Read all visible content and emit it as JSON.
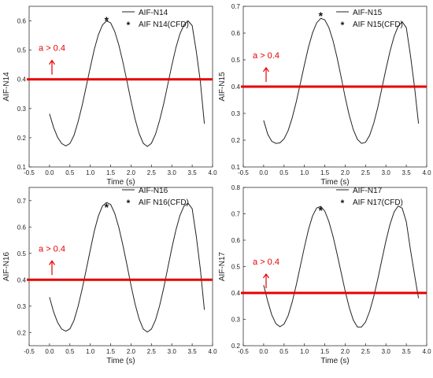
{
  "chart_data": [
    {
      "type": "line",
      "xlabel": "Time (s)",
      "ylabel": "AIF-N14",
      "xlim": [
        -0.5,
        4.0
      ],
      "ylim": [
        0.1,
        0.65
      ],
      "xticks": [
        "-0.5",
        "0.0",
        "0.5",
        "1.0",
        "1.5",
        "2.0",
        "2.5",
        "3.0",
        "3.5",
        "4.0"
      ],
      "yticks": [
        "0.1",
        "0.2",
        "0.3",
        "0.4",
        "0.5",
        "0.6"
      ],
      "grid": false,
      "legend_position": "top-right",
      "series": [
        {
          "name": "AIF-N14",
          "kind": "line",
          "x": [
            0.0,
            0.1,
            0.2,
            0.3,
            0.4,
            0.5,
            0.6,
            0.7,
            0.8,
            0.9,
            1.0,
            1.1,
            1.2,
            1.3,
            1.4,
            1.5,
            1.6,
            1.7,
            1.8,
            1.9,
            2.0,
            2.1,
            2.2,
            2.3,
            2.4,
            2.5,
            2.6,
            2.7,
            2.8,
            2.9,
            3.0,
            3.1,
            3.2,
            3.3,
            3.4,
            3.5,
            3.6,
            3.7,
            3.8
          ],
          "y": [
            0.282,
            0.235,
            0.201,
            0.18,
            0.172,
            0.18,
            0.208,
            0.254,
            0.31,
            0.375,
            0.441,
            0.503,
            0.553,
            0.586,
            0.6,
            0.593,
            0.564,
            0.518,
            0.459,
            0.393,
            0.326,
            0.264,
            0.214,
            0.181,
            0.17,
            0.181,
            0.212,
            0.259,
            0.316,
            0.381,
            0.447,
            0.508,
            0.556,
            0.587,
            0.6,
            0.584,
            0.496,
            0.392,
            0.248
          ]
        },
        {
          "name": "AIF N14(CFD)",
          "kind": "marker",
          "x": [
            1.4
          ],
          "y": [
            0.602
          ]
        }
      ],
      "threshold": {
        "y": 0.4,
        "color": "#e60000"
      },
      "annotation": {
        "text": "a > 0.4",
        "color": "#e60000"
      }
    },
    {
      "type": "line",
      "xlabel": "Time (s)",
      "ylabel": "AIF-N15",
      "xlim": [
        -0.5,
        4.0
      ],
      "ylim": [
        0.1,
        0.7
      ],
      "xticks": [
        "-0.5",
        "0.0",
        "0.5",
        "1.0",
        "1.5",
        "2.0",
        "2.5",
        "3.0",
        "3.5",
        "4.0"
      ],
      "yticks": [
        "0.1",
        "0.2",
        "0.3",
        "0.4",
        "0.5",
        "0.6",
        "0.7"
      ],
      "grid": false,
      "legend_position": "top-right",
      "series": [
        {
          "name": "AIF-N15",
          "kind": "line",
          "x": [
            0.0,
            0.1,
            0.2,
            0.3,
            0.4,
            0.5,
            0.6,
            0.7,
            0.8,
            0.9,
            1.0,
            1.1,
            1.2,
            1.3,
            1.4,
            1.5,
            1.6,
            1.7,
            1.8,
            1.9,
            2.0,
            2.1,
            2.2,
            2.3,
            2.4,
            2.5,
            2.6,
            2.7,
            2.8,
            2.9,
            3.0,
            3.1,
            3.2,
            3.3,
            3.4,
            3.5,
            3.6,
            3.7,
            3.8
          ],
          "y": [
            0.274,
            0.222,
            0.196,
            0.188,
            0.19,
            0.205,
            0.236,
            0.283,
            0.343,
            0.412,
            0.482,
            0.547,
            0.601,
            0.638,
            0.655,
            0.649,
            0.621,
            0.573,
            0.509,
            0.436,
            0.361,
            0.293,
            0.239,
            0.203,
            0.188,
            0.192,
            0.218,
            0.263,
            0.323,
            0.393,
            0.465,
            0.532,
            0.588,
            0.626,
            0.642,
            0.62,
            0.518,
            0.4,
            0.262
          ]
        },
        {
          "name": "AIF N15(CFD)",
          "kind": "marker",
          "x": [
            1.4
          ],
          "y": [
            0.665
          ]
        }
      ],
      "threshold": {
        "y": 0.4,
        "color": "#e60000"
      },
      "annotation": {
        "text": "a > 0.4",
        "color": "#e60000"
      }
    },
    {
      "type": "line",
      "xlabel": "Time (s)",
      "ylabel": "AIF-N16",
      "xlim": [
        -0.5,
        4.0
      ],
      "ylim": [
        0.15,
        0.75
      ],
      "xticks": [
        "-0.5",
        "0.0",
        "0.5",
        "1.0",
        "1.5",
        "2.0",
        "2.5",
        "3.0",
        "3.5",
        "4.0"
      ],
      "yticks": [
        "0.2",
        "0.3",
        "0.4",
        "0.5",
        "0.6",
        "0.7"
      ],
      "grid": false,
      "legend_position": "top-right",
      "series": [
        {
          "name": "AIF-N16",
          "kind": "line",
          "x": [
            0.0,
            0.1,
            0.2,
            0.3,
            0.4,
            0.5,
            0.6,
            0.7,
            0.8,
            0.9,
            1.0,
            1.1,
            1.2,
            1.3,
            1.4,
            1.5,
            1.6,
            1.7,
            1.8,
            1.9,
            2.0,
            2.1,
            2.2,
            2.3,
            2.4,
            2.5,
            2.6,
            2.7,
            2.8,
            2.9,
            3.0,
            3.1,
            3.2,
            3.3,
            3.4,
            3.5,
            3.6,
            3.7,
            3.8
          ],
          "y": [
            0.334,
            0.278,
            0.238,
            0.213,
            0.205,
            0.214,
            0.246,
            0.298,
            0.364,
            0.438,
            0.513,
            0.585,
            0.642,
            0.68,
            0.693,
            0.685,
            0.652,
            0.599,
            0.531,
            0.456,
            0.379,
            0.308,
            0.251,
            0.213,
            0.202,
            0.213,
            0.247,
            0.301,
            0.368,
            0.443,
            0.519,
            0.588,
            0.644,
            0.68,
            0.69,
            0.669,
            0.565,
            0.44,
            0.286
          ]
        },
        {
          "name": "AIF N16(CFD)",
          "kind": "marker",
          "x": [
            1.4
          ],
          "y": [
            0.676
          ]
        }
      ],
      "threshold": {
        "y": 0.4,
        "color": "#e60000"
      },
      "annotation": {
        "text": "a > 0.4",
        "color": "#e60000"
      }
    },
    {
      "type": "line",
      "xlabel": "Time (s)",
      "ylabel": "AIF-N17",
      "xlim": [
        -0.5,
        4.0
      ],
      "ylim": [
        0.2,
        0.8
      ],
      "xticks": [
        "-0.5",
        "0.0",
        "0.5",
        "1.0",
        "1.5",
        "2.0",
        "2.5",
        "3.0",
        "3.5",
        "4.0"
      ],
      "yticks": [
        "0.2",
        "0.3",
        "0.4",
        "0.5",
        "0.6",
        "0.7",
        "0.8"
      ],
      "grid": false,
      "legend_position": "top-right",
      "series": [
        {
          "name": "AIF-N17",
          "kind": "line",
          "x": [
            0.0,
            0.1,
            0.2,
            0.3,
            0.4,
            0.5,
            0.6,
            0.7,
            0.8,
            0.9,
            1.0,
            1.1,
            1.2,
            1.3,
            1.4,
            1.5,
            1.6,
            1.7,
            1.8,
            1.9,
            2.0,
            2.1,
            2.2,
            2.3,
            2.4,
            2.5,
            2.6,
            2.7,
            2.8,
            2.9,
            3.0,
            3.1,
            3.2,
            3.3,
            3.4,
            3.5,
            3.6,
            3.7,
            3.8
          ],
          "y": [
            0.43,
            0.368,
            0.317,
            0.284,
            0.272,
            0.282,
            0.314,
            0.365,
            0.43,
            0.502,
            0.574,
            0.64,
            0.692,
            0.722,
            0.728,
            0.71,
            0.671,
            0.616,
            0.549,
            0.478,
            0.408,
            0.345,
            0.297,
            0.271,
            0.271,
            0.29,
            0.33,
            0.386,
            0.453,
            0.525,
            0.597,
            0.66,
            0.707,
            0.73,
            0.721,
            0.67,
            0.565,
            0.47,
            0.38
          ]
        },
        {
          "name": "AIF N17(CFD)",
          "kind": "marker",
          "x": [
            1.4
          ],
          "y": [
            0.713
          ]
        }
      ],
      "threshold": {
        "y": 0.4,
        "color": "#e60000"
      },
      "annotation": {
        "text": "a > 0.4",
        "color": "#e60000"
      }
    }
  ]
}
